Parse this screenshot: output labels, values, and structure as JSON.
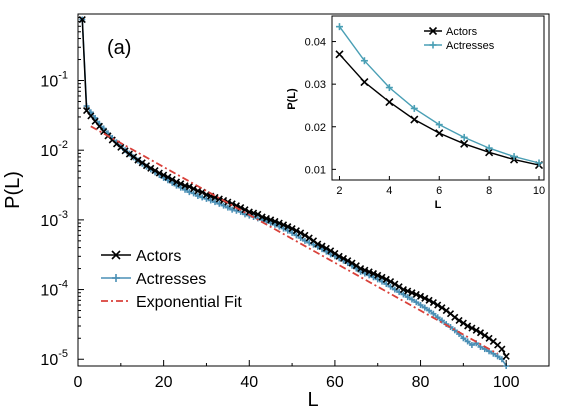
{
  "panel_label": "(a)",
  "chart_data": [
    {
      "type": "line",
      "role": "main",
      "xlabel": "L",
      "ylabel": "P(L)",
      "xlim": [
        0,
        110
      ],
      "ylim": [
        8e-06,
        0.9
      ],
      "yscale": "log",
      "grid": false,
      "legend_position": "bottom-left",
      "x_ticks": [
        0,
        20,
        40,
        60,
        80,
        100
      ],
      "x_tick_labels": [
        "0",
        "20",
        "40",
        "60",
        "80",
        "100"
      ],
      "y_ticks": [
        1e-05,
        0.0001,
        0.001,
        0.01,
        0.1
      ],
      "y_tick_labels": [
        {
          "base": "10",
          "exp": "-5"
        },
        {
          "base": "10",
          "exp": "-4"
        },
        {
          "base": "10",
          "exp": "-3"
        },
        {
          "base": "10",
          "exp": "-2"
        },
        {
          "base": "10",
          "exp": "-1"
        }
      ],
      "series": [
        {
          "name": "Actors",
          "color": "#000000",
          "marker": "x",
          "x": [
            1,
            2,
            3,
            4,
            5,
            6,
            7,
            8,
            9,
            10,
            11,
            12,
            13,
            14,
            15,
            16,
            17,
            18,
            19,
            20,
            21,
            22,
            23,
            24,
            25,
            26,
            27,
            28,
            29,
            30,
            31,
            32,
            33,
            34,
            35,
            36,
            37,
            38,
            39,
            40,
            41,
            42,
            43,
            44,
            45,
            46,
            47,
            48,
            49,
            50,
            51,
            52,
            53,
            54,
            55,
            56,
            57,
            58,
            59,
            60,
            61,
            62,
            63,
            64,
            65,
            66,
            67,
            68,
            69,
            70,
            71,
            72,
            73,
            74,
            75,
            76,
            77,
            78,
            79,
            80,
            81,
            82,
            83,
            84,
            85,
            86,
            87,
            88,
            89,
            90,
            91,
            92,
            93,
            94,
            95,
            96,
            97,
            98,
            99,
            100
          ],
          "y": [
            0.75,
            0.037,
            0.031,
            0.026,
            0.022,
            0.0185,
            0.016,
            0.014,
            0.0123,
            0.011,
            0.0098,
            0.0088,
            0.008,
            0.0072,
            0.0066,
            0.006,
            0.0055,
            0.0051,
            0.0047,
            0.0044,
            0.0041,
            0.0038,
            0.0035,
            0.0033,
            0.0031,
            0.003,
            0.0028,
            0.0026,
            0.0025,
            0.0023,
            0.0022,
            0.0021,
            0.002,
            0.0019,
            0.0018,
            0.0017,
            0.0016,
            0.0015,
            0.0014,
            0.0013,
            0.00125,
            0.0012,
            0.0011,
            0.00105,
            0.001,
            0.00095,
            0.0009,
            0.00085,
            0.0008,
            0.00075,
            0.0007,
            0.00065,
            0.0006,
            0.00055,
            0.0005,
            0.00045,
            0.00042,
            0.00039,
            0.00036,
            0.00033,
            0.0003,
            0.00028,
            0.00026,
            0.00024,
            0.00022,
            0.0002,
            0.00019,
            0.00018,
            0.00017,
            0.00016,
            0.00015,
            0.00014,
            0.00013,
            0.00012,
            0.00011,
            0.0001,
            9.5e-05,
            9e-05,
            8.5e-05,
            8e-05,
            7.5e-05,
            7e-05,
            6.5e-05,
            6e-05,
            5.5e-05,
            5e-05,
            4.5e-05,
            4e-05,
            3.6e-05,
            3.3e-05,
            3e-05,
            2.8e-05,
            2.6e-05,
            2.4e-05,
            2.2e-05,
            2e-05,
            1.8e-05,
            1.6e-05,
            1.4e-05,
            1.1e-05
          ]
        },
        {
          "name": "Actresses",
          "color": "#4a8fb5",
          "marker": "+",
          "x": [
            1,
            2,
            3,
            4,
            5,
            6,
            7,
            8,
            9,
            10,
            11,
            12,
            13,
            14,
            15,
            16,
            17,
            18,
            19,
            20,
            21,
            22,
            23,
            24,
            25,
            26,
            27,
            28,
            29,
            30,
            31,
            32,
            33,
            34,
            35,
            36,
            37,
            38,
            39,
            40,
            41,
            42,
            43,
            44,
            45,
            46,
            47,
            48,
            49,
            50,
            51,
            52,
            53,
            54,
            55,
            56,
            57,
            58,
            59,
            60,
            61,
            62,
            63,
            64,
            65,
            66,
            67,
            68,
            69,
            70,
            71,
            72,
            73,
            74,
            75,
            76,
            77,
            78,
            79,
            80,
            81,
            82,
            83,
            84,
            85,
            86,
            87,
            88,
            89,
            90,
            91,
            92,
            93,
            94,
            95,
            96,
            97,
            98,
            99,
            100
          ],
          "y": [
            0.75,
            0.043,
            0.035,
            0.029,
            0.024,
            0.0205,
            0.0175,
            0.015,
            0.013,
            0.0114,
            0.01,
            0.0089,
            0.0079,
            0.0071,
            0.0064,
            0.0058,
            0.0053,
            0.0048,
            0.0044,
            0.004,
            0.0037,
            0.0034,
            0.0031,
            0.0029,
            0.0027,
            0.0025,
            0.0024,
            0.0022,
            0.0021,
            0.002,
            0.0019,
            0.0018,
            0.0017,
            0.0016,
            0.0015,
            0.0014,
            0.00135,
            0.0013,
            0.0012,
            0.00115,
            0.0011,
            0.00105,
            0.001,
            0.00095,
            0.0009,
            0.00085,
            0.0008,
            0.00075,
            0.0007,
            0.00065,
            0.0006,
            0.00055,
            0.0005,
            0.00047,
            0.00044,
            0.00041,
            0.00038,
            0.00035,
            0.00032,
            0.0003,
            0.00028,
            0.00026,
            0.00024,
            0.00022,
            0.0002,
            0.00018,
            0.00017,
            0.00016,
            0.00015,
            0.00014,
            0.00013,
            0.00012,
            0.00011,
            0.0001,
            9.2e-05,
            8.5e-05,
            7.8e-05,
            7.2e-05,
            6.6e-05,
            6e-05,
            5.5e-05,
            5e-05,
            4.5e-05,
            4e-05,
            3.6e-05,
            3.2e-05,
            2.9e-05,
            2.6e-05,
            2.3e-05,
            2e-05,
            1.8e-05,
            1.6e-05,
            1.7e-05,
            1.5e-05,
            1.4e-05,
            1.3e-05,
            1.2e-05,
            1.1e-05,
            1e-05,
            8e-06
          ]
        },
        {
          "name": "Exponential Fit",
          "color": "#d9413a",
          "marker": "none",
          "dash": "dashdot",
          "x": [
            3,
            98
          ],
          "y": [
            0.022,
            1.2e-05
          ]
        }
      ]
    },
    {
      "type": "line",
      "role": "inset",
      "xlabel": "L",
      "ylabel": "P(L)",
      "xlim": [
        1.7,
        10.2
      ],
      "ylim": [
        0.0075,
        0.046
      ],
      "grid": false,
      "legend_position": "top-right",
      "x_ticks": [
        2,
        4,
        6,
        8,
        10
      ],
      "x_tick_labels": [
        "2",
        "4",
        "6",
        "8",
        "10"
      ],
      "y_ticks": [
        0.01,
        0.02,
        0.03,
        0.04
      ],
      "y_tick_labels": [
        "0.01",
        "0.02",
        "0.03",
        "0.04"
      ],
      "series": [
        {
          "name": "Actors",
          "color": "#000000",
          "marker": "x",
          "x": [
            2,
            3,
            4,
            5,
            6,
            7,
            8,
            9,
            10
          ],
          "y": [
            0.037,
            0.0305,
            0.0258,
            0.0217,
            0.0185,
            0.016,
            0.014,
            0.0123,
            0.011
          ]
        },
        {
          "name": "Actresses",
          "color": "#4a9fb5",
          "marker": "+",
          "x": [
            2,
            3,
            4,
            5,
            6,
            7,
            8,
            9,
            10
          ],
          "y": [
            0.0435,
            0.0355,
            0.0292,
            0.0243,
            0.0205,
            0.0175,
            0.015,
            0.013,
            0.0115
          ]
        }
      ]
    }
  ]
}
